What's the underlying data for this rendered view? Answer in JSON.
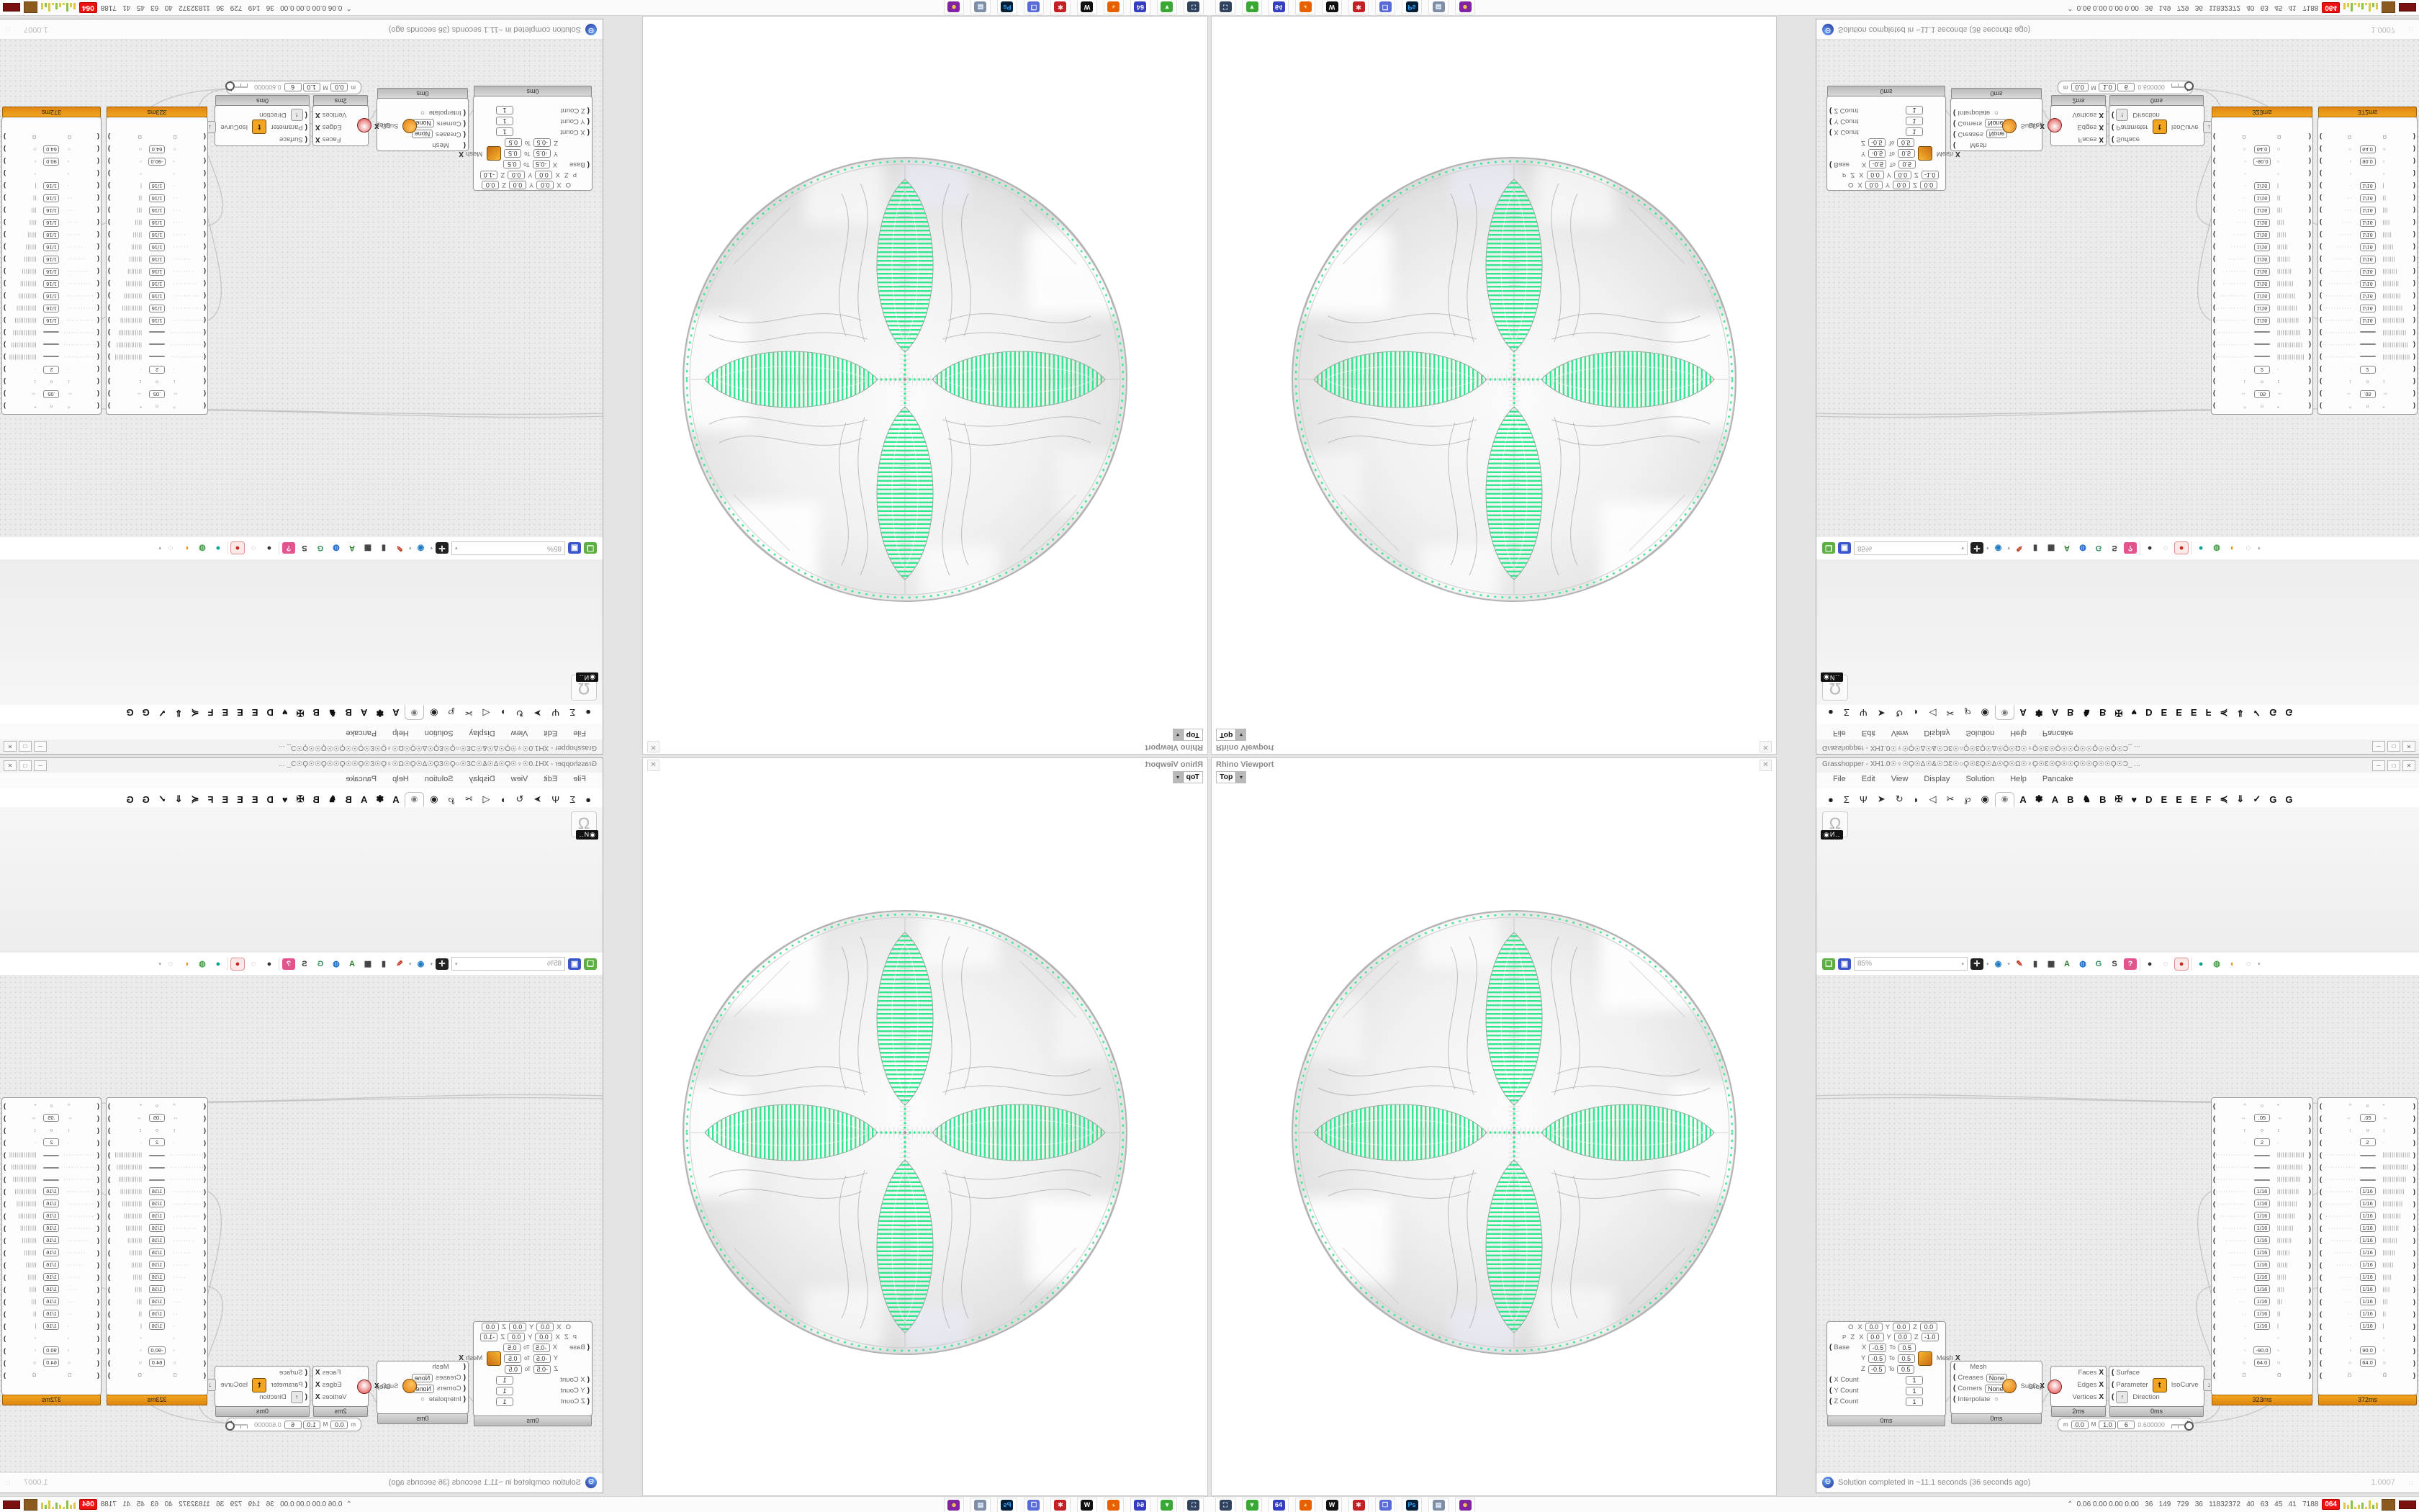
{
  "colors": {
    "accent_green": "#32e88d",
    "node_orange": "#f2a51f",
    "canvas": "#ebebeb",
    "badge_red": "#e11111"
  },
  "rhino": {
    "window_title": "Rhino Viewport",
    "close_glyph": "✕",
    "viewport_label": "Top",
    "viewport_dd": "▾"
  },
  "gh": {
    "title": "Grasshopper - XH1.0☉♀☉Ϙ☉Δ☉&☉ƆƐ☉○Ϙ☉ƐϘ☉Δ☉Ϙ☉Ω☉♀Ϙ☉Ɛ☉Ϙ☉☉Ϙ☉☉Ϙ☉☉Ϙ☉Ɔ_ ...",
    "window_buttons": [
      "─",
      "□",
      "✕"
    ],
    "menus": [
      "File",
      "Edit",
      "View",
      "Display",
      "Solution",
      "Help",
      "Pancake"
    ],
    "tab_icons": [
      "●",
      "Σ",
      "Ψ",
      "➤",
      "↻",
      "◗",
      "◁",
      "✂",
      "℘",
      "◉"
    ],
    "active_tab_glyph": "◉",
    "tab_letters": [
      "A",
      "✽",
      "A",
      "B",
      "♞",
      "B",
      "✠",
      "♥",
      "D",
      "E",
      "E",
      "E",
      "F",
      "≼",
      "⇓",
      "✓",
      "G",
      "G"
    ],
    "palette": {
      "component_glyph": "Ω",
      "component_label": "◉И‥"
    },
    "toolbar": {
      "zoom_value": "85%",
      "combo_dd": "▾",
      "icons": [
        {
          "name": "new-file",
          "ch": "❏",
          "bg": "#5cb040",
          "fg": "#ffffff"
        },
        {
          "name": "save-file",
          "ch": "▣",
          "bg": "#3a57c9",
          "fg": "#ffffff"
        },
        {
          "name": "zoom-extents",
          "ch": "✛",
          "bg": "#222222",
          "fg": "#ffffff",
          "dd": true
        },
        {
          "name": "preview-eye",
          "ch": "◉",
          "bg": "#ffffff",
          "fg": "#1f7ac4",
          "dd": true
        },
        {
          "name": "sketch-quill",
          "ch": "✎",
          "bg": "#ffffff",
          "fg": "#c23b22"
        },
        {
          "name": "speaker",
          "ch": "▮",
          "bg": "#ffffff",
          "fg": "#444444"
        },
        {
          "name": "camera",
          "ch": "▦",
          "bg": "#ffffff",
          "fg": "#333333"
        },
        {
          "name": "axes",
          "ch": "A",
          "bg": "#ffffff",
          "fg": "#2e7d32"
        },
        {
          "name": "document-globe",
          "ch": "◍",
          "bg": "#ffffff",
          "fg": "#1565c0"
        },
        {
          "name": "gha-recycle",
          "ch": "G",
          "bg": "#ffffff",
          "fg": "#2e8b57"
        },
        {
          "name": "find",
          "ch": "S",
          "bg": "#ffffff",
          "fg": "#333333"
        },
        {
          "name": "help-box",
          "ch": "?",
          "bg": "#e2548e",
          "fg": "#ffffff"
        },
        {
          "name": "preview-off",
          "ch": "●",
          "bg": "#ffffff",
          "fg": "#333333",
          "sep_before": true
        },
        {
          "name": "preview-wire",
          "ch": "◌",
          "bg": "#ffffff",
          "fg": "#999999"
        },
        {
          "name": "preview-shaded",
          "ch": "●",
          "bg": "#fde8e8",
          "fg": "#c62828",
          "active": true
        },
        {
          "name": "quality-low",
          "ch": "●",
          "bg": "#ffffff",
          "fg": "#159e8c",
          "sep_before": true
        },
        {
          "name": "quality-mid",
          "ch": "◍",
          "bg": "#ffffff",
          "fg": "#43a047"
        },
        {
          "name": "quality-high",
          "ch": "◐",
          "bg": "#ffffff",
          "fg": "#ef8c00"
        },
        {
          "name": "selection-lasso",
          "ch": "◌",
          "bg": "#ffffff",
          "fg": "#888888",
          "dd": true
        }
      ]
    },
    "status": {
      "text": "Solution completed in ~11.1 seconds (36 seconds ago)",
      "zoom": "1.0007"
    },
    "nodes": {
      "meshbox": {
        "plane_o_label": "O",
        "plane_o": [
          "0.0",
          "0.0",
          "0.0"
        ],
        "plane_p_label": "P",
        "plane_z_label": "Z",
        "plane_z": [
          "0.0",
          "0.0",
          "-1.0"
        ],
        "base_label": "Base",
        "domains": [
          [
            "X",
            "-0.5",
            "0.5"
          ],
          [
            "Y",
            "-0.5",
            "0.5"
          ],
          [
            "Z",
            "-0.5",
            "0.5"
          ]
        ],
        "to_label": "To",
        "counts": [
          [
            "X Count",
            "1"
          ],
          [
            "Y Count",
            "1"
          ],
          [
            "Z Count",
            "1"
          ]
        ],
        "output": "Mesh",
        "footer": "0ms"
      },
      "subd": {
        "in_mesh": "Mesh",
        "creases_label": "Creases",
        "creases": "None",
        "corners_label": "Corners",
        "corners": "None",
        "interpolate_label": "Interpolate",
        "output": "SubD",
        "footer": "0ms"
      },
      "debrep": {
        "input": "Brep",
        "outputs": [
          "Faces",
          "Edges",
          "Vertices"
        ],
        "footer": "2ms"
      },
      "isocurve": {
        "inputs": [
          "Surface",
          "Parameter",
          "Direction"
        ],
        "t_glyph": "t",
        "dir_glyph": "↑",
        "out_glyph": "↓",
        "output": "IsoCurve",
        "footer": "0ms"
      },
      "domain_slider": {
        "m_label": "m",
        "m": "0.0",
        "M_label": "M",
        "M": "1.0",
        "d_label": "D",
        "d": "6",
        "value": "0.600000"
      },
      "tall": [
        {
          "footer": "323ms",
          "rows": [
            [
              "^",
              "circ",
              "",
              "*"
            ],
            [
              "⇔",
              "box",
              ".05",
              "⇔"
            ],
            [
              "↕",
              "circ",
              "",
              "↕"
            ],
            [
              "·",
              "box",
              "2",
              "·"
            ],
            [
              "···············",
              "box",
              "",
              "|||||||||||||||"
            ],
            [
              "··············",
              "box",
              "",
              "||||||||||||||"
            ],
            [
              "·············",
              "box",
              "",
              "|||||||||||||"
            ],
            [
              "············",
              "box",
              "1/16",
              "||||||||||||"
            ],
            [
              "···········",
              "box",
              "1/16",
              "|||||||||||"
            ],
            [
              "··········",
              "box",
              "1/16",
              "||||||||||"
            ],
            [
              "·········",
              "box",
              "1/16",
              "|||||||||"
            ],
            [
              "········",
              "box",
              "1/16",
              "||||||||"
            ],
            [
              "·······",
              "box",
              "1/16",
              "|||||||"
            ],
            [
              "······",
              "box",
              "1/16",
              "||||||"
            ],
            [
              "·····",
              "box",
              "1/16",
              "|||||"
            ],
            [
              "····",
              "box",
              "1/16",
              "||||"
            ],
            [
              "···",
              "box",
              "1/16",
              "|||"
            ],
            [
              "··",
              "box",
              "1/16",
              "||"
            ],
            [
              "·",
              "box",
              "1/16",
              "|"
            ],
            [
              "▫",
              "none",
              "",
              "▫"
            ],
            [
              "▫",
              "box",
              "-90.0",
              "▫"
            ],
            [
              "○",
              "box",
              "64.0",
              "○"
            ],
            [
              "Ω",
              "none",
              "",
              "Ω"
            ]
          ]
        },
        {
          "footer": "372ms",
          "rows": [
            [
              "^",
              "circ",
              "",
              "*"
            ],
            [
              "⇔",
              "box",
              ".05",
              "⇔"
            ],
            [
              "↕",
              "circ",
              "",
              "↕"
            ],
            [
              "·",
              "box",
              "2",
              "·"
            ],
            [
              "···············",
              "box",
              "",
              "|||||||||||||||"
            ],
            [
              "··············",
              "box",
              "",
              "||||||||||||||"
            ],
            [
              "·············",
              "box",
              "",
              "|||||||||||||"
            ],
            [
              "············",
              "box",
              "1/16",
              "||||||||||||"
            ],
            [
              "···········",
              "box",
              "1/16",
              "|||||||||||"
            ],
            [
              "··········",
              "box",
              "1/16",
              "||||||||||"
            ],
            [
              "·········",
              "box",
              "1/16",
              "|||||||||"
            ],
            [
              "········",
              "box",
              "1/16",
              "||||||||"
            ],
            [
              "·······",
              "box",
              "1/16",
              "|||||||"
            ],
            [
              "······",
              "box",
              "1/16",
              "||||||"
            ],
            [
              "·····",
              "box",
              "1/16",
              "|||||"
            ],
            [
              "····",
              "box",
              "1/16",
              "||||"
            ],
            [
              "···",
              "box",
              "1/16",
              "|||"
            ],
            [
              "··",
              "box",
              "1/16",
              "||"
            ],
            [
              "·",
              "box",
              "1/16",
              "|"
            ],
            [
              "▫",
              "none",
              "",
              "▫"
            ],
            [
              "▫",
              "box",
              "90.0",
              "▫"
            ],
            [
              "○",
              "box",
              "64.0",
              "○"
            ],
            [
              "Ω",
              "none",
              "",
              "Ω"
            ]
          ]
        }
      ]
    }
  },
  "taskbar": {
    "launchers": [
      {
        "name": "screenshot-tool",
        "ch": "⛶",
        "bg": "#30425c",
        "fg": "#cfe3ff"
      },
      {
        "name": "disk-imager",
        "ch": "▼",
        "bg": "#39a935",
        "fg": "#e8ffe8"
      },
      {
        "name": "floppy-64",
        "ch": "64",
        "bg": "#3440bf",
        "fg": "#ffffff"
      },
      {
        "name": "firefox",
        "ch": "◕",
        "bg": "#e66000",
        "fg": "#ffd28a"
      },
      {
        "name": "wolf-app",
        "ch": "W",
        "bg": "#101010",
        "fg": "#ffffff"
      },
      {
        "name": "red-app",
        "ch": "✱",
        "bg": "#c22026",
        "fg": "#ffdede"
      },
      {
        "name": "window-manager",
        "ch": "❐",
        "bg": "#5a6bd8",
        "fg": "#ffffff"
      },
      {
        "name": "photoshop",
        "ch": "Ps",
        "bg": "#001e36",
        "fg": "#31a8ff"
      },
      {
        "name": "remote-desktop",
        "ch": "▤",
        "bg": "#7d8ea6",
        "fg": "#eaf2ff"
      },
      {
        "name": "chat-app",
        "ch": "☻",
        "bg": "#8024a0",
        "fg": "#ffd34d"
      }
    ],
    "stats": {
      "chev": "⌃",
      "text": "0.06 0.00 0.00 0.00   36   149   729   36   11832372   40   63   45   41   7188",
      "badge": "064"
    },
    "spark": [
      [
        3,
        "#d9c94a"
      ],
      [
        2,
        "#d9c94a"
      ],
      [
        4,
        "#8bc34a"
      ],
      [
        1,
        "#d9c94a"
      ],
      [
        2,
        "#d9c94a"
      ],
      [
        3,
        "#8bc34a"
      ],
      [
        1,
        "#d9c94a"
      ],
      [
        4,
        "#d9c94a"
      ],
      [
        2,
        "#8bc34a"
      ],
      [
        3,
        "#d9c94a"
      ]
    ]
  }
}
